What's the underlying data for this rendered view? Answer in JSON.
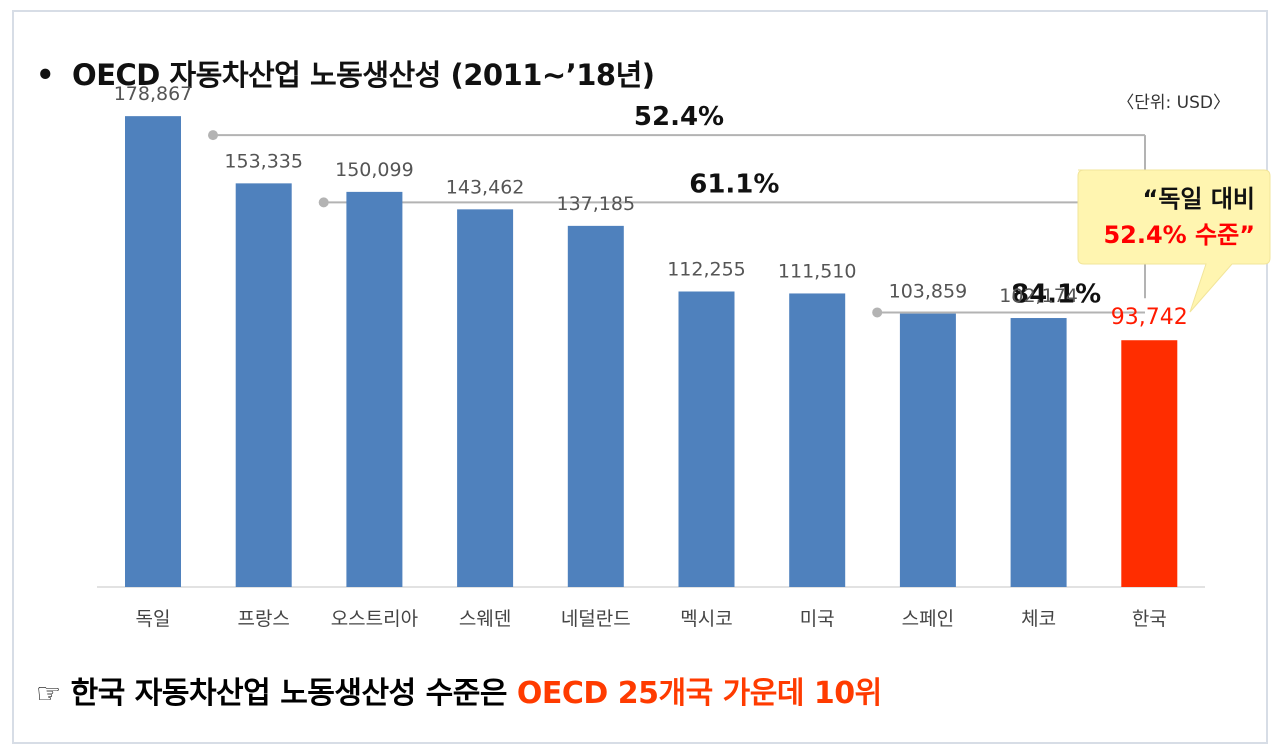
{
  "title": "OECD 자동차산업 노동생산성 (2011~’18년)",
  "bullet": "•",
  "unit": "〈단위: USD〉",
  "callout": {
    "line1": "“독일 대비",
    "line2": "52.4% 수준”",
    "highlight_color": "#ff0000"
  },
  "bottom": {
    "icon": "☞",
    "text_before": "한국 자동차산업 노동생산성 수준은 ",
    "text_highlight": "OECD 25개국 가운데 10위"
  },
  "colors": {
    "bar": "#4f81bd",
    "highlight_bar": "#ff2d00",
    "highlight_text": "#ff1a00",
    "bracket": "#b3b3b3"
  },
  "chart_data": {
    "type": "bar",
    "categories": [
      "독일",
      "프랑스",
      "오스트리아",
      "스웨덴",
      "네덜란드",
      "멕시코",
      "미국",
      "스페인",
      "체코",
      "한국"
    ],
    "values": [
      178867,
      153335,
      150099,
      143462,
      137185,
      112255,
      111510,
      103859,
      102174,
      93742
    ],
    "value_labels": [
      "178,867",
      "153,335",
      "150,099",
      "143,462",
      "137,185",
      "112,255",
      "111,510",
      "103,859",
      "102,174",
      "93,742"
    ],
    "highlight_index": 9,
    "ylim": [
      0,
      185000
    ],
    "annotations": [
      {
        "label": "52.4%",
        "from_category": "독일",
        "to_category": "한국"
      },
      {
        "label": "61.1%",
        "from_category": "프랑스",
        "to_category": "한국"
      },
      {
        "label": "84.1%",
        "from_category": "미국",
        "to_category": "한국"
      }
    ]
  }
}
